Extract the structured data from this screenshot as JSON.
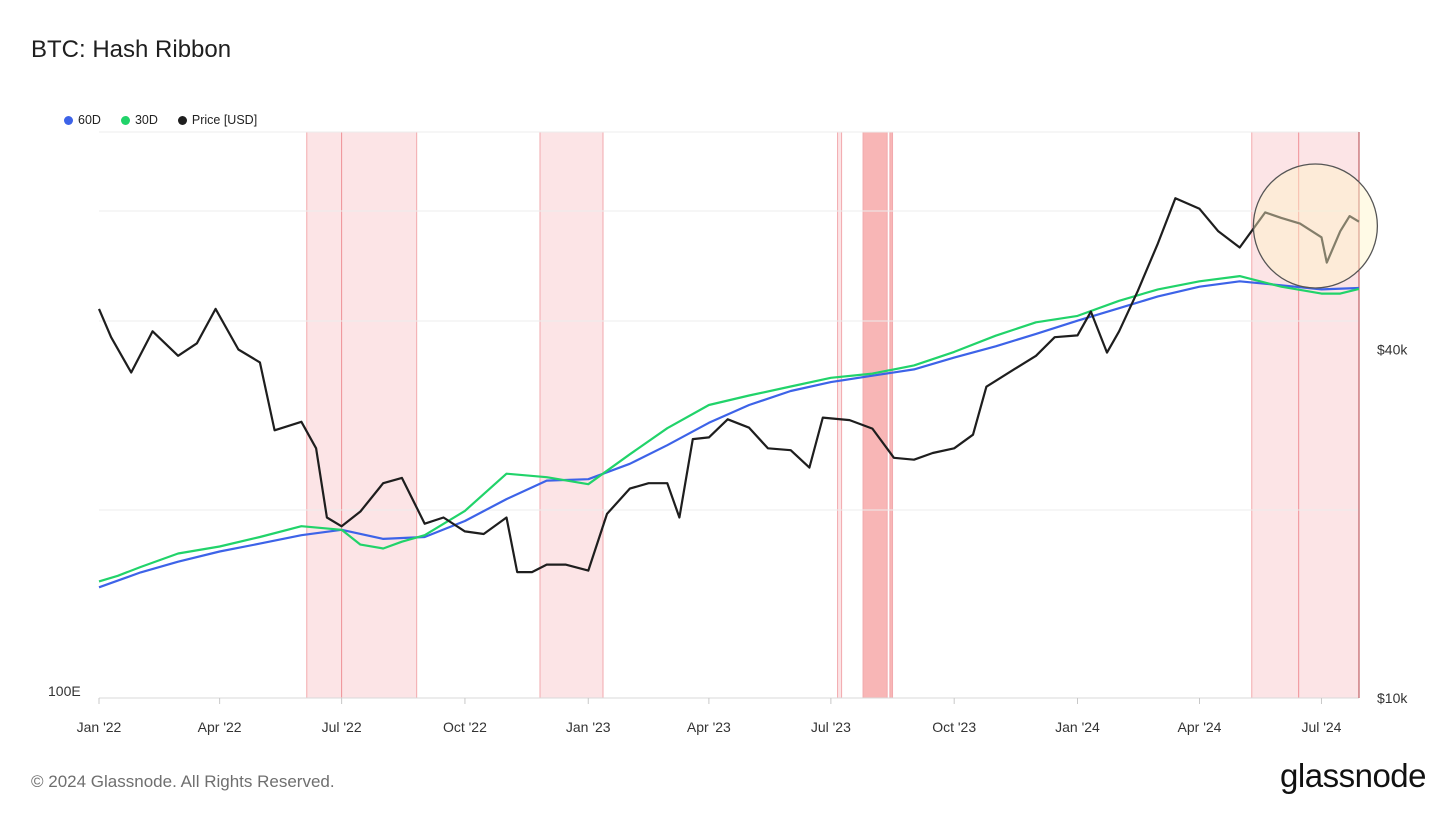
{
  "title": "BTC: Hash Ribbon",
  "footer": "© 2024 Glassnode. All Rights Reserved.",
  "brand": "glassnode",
  "chart_data": {
    "type": "line",
    "title": "BTC: Hash Ribbon",
    "legend_position": "top-left",
    "grid": true,
    "x_ticks": [
      "Jan '22",
      "Apr '22",
      "Jul '22",
      "Oct '22",
      "Jan '23",
      "Apr '23",
      "Jul '23",
      "Oct '23",
      "Jan '24",
      "Apr '24",
      "Jul '24"
    ],
    "x_range": [
      "2022-01-01",
      "2024-07-29"
    ],
    "y_left": {
      "label": "",
      "scale": "log",
      "tick_labels": [
        "100E"
      ]
    },
    "y_right": {
      "label": "",
      "scale": "log",
      "range": [
        10000,
        95000
      ],
      "tick_labels": [
        "$40k",
        "$10k"
      ]
    },
    "series": [
      {
        "name": "60D",
        "color": "#3d63e8",
        "axis": "left",
        "x": [
          "2022-01-01",
          "2022-02-01",
          "2022-03-01",
          "2022-04-01",
          "2022-05-01",
          "2022-06-01",
          "2022-07-01",
          "2022-08-01",
          "2022-09-01",
          "2022-10-01",
          "2022-11-01",
          "2022-12-01",
          "2023-01-01",
          "2023-02-01",
          "2023-03-01",
          "2023-04-01",
          "2023-05-01",
          "2023-06-01",
          "2023-07-01",
          "2023-08-01",
          "2023-09-01",
          "2023-10-01",
          "2023-11-01",
          "2023-12-01",
          "2024-01-01",
          "2024-02-01",
          "2024-03-01",
          "2024-04-01",
          "2024-05-01",
          "2024-06-01",
          "2024-07-01",
          "2024-07-29"
        ],
        "values": [
          172,
          185,
          195,
          205,
          213,
          222,
          228,
          218,
          220,
          238,
          265,
          290,
          292,
          315,
          345,
          385,
          420,
          450,
          470,
          485,
          500,
          530,
          560,
          595,
          635,
          675,
          715,
          750,
          770,
          755,
          740,
          745
        ]
      },
      {
        "name": "30D",
        "color": "#21d36a",
        "axis": "left",
        "x": [
          "2022-01-01",
          "2022-01-15",
          "2022-02-01",
          "2022-03-01",
          "2022-04-01",
          "2022-05-01",
          "2022-06-01",
          "2022-07-01",
          "2022-07-15",
          "2022-08-01",
          "2022-08-15",
          "2022-09-01",
          "2022-10-01",
          "2022-11-01",
          "2022-12-01",
          "2023-01-01",
          "2023-02-01",
          "2023-03-01",
          "2023-04-01",
          "2023-05-01",
          "2023-06-01",
          "2023-07-01",
          "2023-08-01",
          "2023-09-01",
          "2023-10-01",
          "2023-11-01",
          "2023-12-01",
          "2024-01-01",
          "2024-02-01",
          "2024-03-01",
          "2024-04-01",
          "2024-05-01",
          "2024-06-01",
          "2024-07-01",
          "2024-07-15",
          "2024-07-29"
        ],
        "values": [
          177,
          182,
          190,
          203,
          210,
          220,
          232,
          228,
          212,
          208,
          215,
          222,
          250,
          300,
          295,
          285,
          330,
          375,
          420,
          440,
          460,
          480,
          490,
          510,
          545,
          590,
          630,
          650,
          700,
          740,
          770,
          790,
          750,
          725,
          725,
          742
        ]
      },
      {
        "name": "Price [USD]",
        "color": "#1e1e1e",
        "axis": "right",
        "x": [
          "2022-01-01",
          "2022-01-10",
          "2022-01-25",
          "2022-02-10",
          "2022-03-01",
          "2022-03-15",
          "2022-03-29",
          "2022-04-15",
          "2022-05-01",
          "2022-05-12",
          "2022-06-01",
          "2022-06-12",
          "2022-06-20",
          "2022-07-01",
          "2022-07-15",
          "2022-08-01",
          "2022-08-15",
          "2022-09-01",
          "2022-09-15",
          "2022-10-01",
          "2022-10-15",
          "2022-11-01",
          "2022-11-09",
          "2022-11-20",
          "2022-12-01",
          "2022-12-15",
          "2023-01-01",
          "2023-01-15",
          "2023-02-01",
          "2023-02-15",
          "2023-03-01",
          "2023-03-10",
          "2023-03-20",
          "2023-04-01",
          "2023-04-15",
          "2023-05-01",
          "2023-05-15",
          "2023-06-01",
          "2023-06-15",
          "2023-06-25",
          "2023-07-15",
          "2023-08-01",
          "2023-08-17",
          "2023-09-01",
          "2023-09-15",
          "2023-10-01",
          "2023-10-15",
          "2023-10-25",
          "2023-11-15",
          "2023-12-01",
          "2023-12-15",
          "2024-01-01",
          "2024-01-11",
          "2024-01-23",
          "2024-02-01",
          "2024-02-15",
          "2024-03-01",
          "2024-03-14",
          "2024-04-01",
          "2024-04-15",
          "2024-05-01",
          "2024-05-20",
          "2024-06-01",
          "2024-06-15",
          "2024-07-01",
          "2024-07-05",
          "2024-07-15",
          "2024-07-22",
          "2024-07-29"
        ],
        "values": [
          47000,
          42000,
          36500,
          43000,
          39000,
          41000,
          47000,
          40000,
          38000,
          29000,
          30000,
          27000,
          20500,
          19800,
          21000,
          23500,
          24000,
          20000,
          20500,
          19400,
          19200,
          20500,
          16500,
          16500,
          17000,
          17000,
          16600,
          20800,
          23000,
          23500,
          23500,
          20500,
          28000,
          28200,
          30300,
          29300,
          27000,
          26800,
          25000,
          30500,
          30200,
          29200,
          26000,
          25800,
          26500,
          27000,
          28500,
          34500,
          37000,
          39000,
          42000,
          42300,
          46500,
          39500,
          43000,
          50500,
          61000,
          73000,
          70000,
          64000,
          60000,
          69000,
          67500,
          66000,
          62500,
          56500,
          64000,
          68000,
          66500
        ]
      }
    ],
    "shaded_regions": [
      {
        "start": "2022-06-05",
        "end": "2022-08-26",
        "marker": "2022-07-01",
        "color": "#fce4e6"
      },
      {
        "start": "2022-11-26",
        "end": "2023-01-12",
        "color": "#fce4e6"
      },
      {
        "start": "2023-07-06",
        "end": "2023-07-09",
        "color": "#fce4e6"
      },
      {
        "start": "2023-07-25",
        "end": "2023-08-12",
        "color": "#f8b6b6"
      },
      {
        "start": "2023-08-14",
        "end": "2023-08-16",
        "color": "#f8b6b6"
      },
      {
        "start": "2024-05-10",
        "end": "2024-07-29",
        "marker": "2024-06-14",
        "color": "#fce4e6"
      }
    ],
    "highlight": {
      "shape": "circle",
      "color": "#fff4c8",
      "around": "2024-05-10 to 2024-07-29"
    }
  }
}
